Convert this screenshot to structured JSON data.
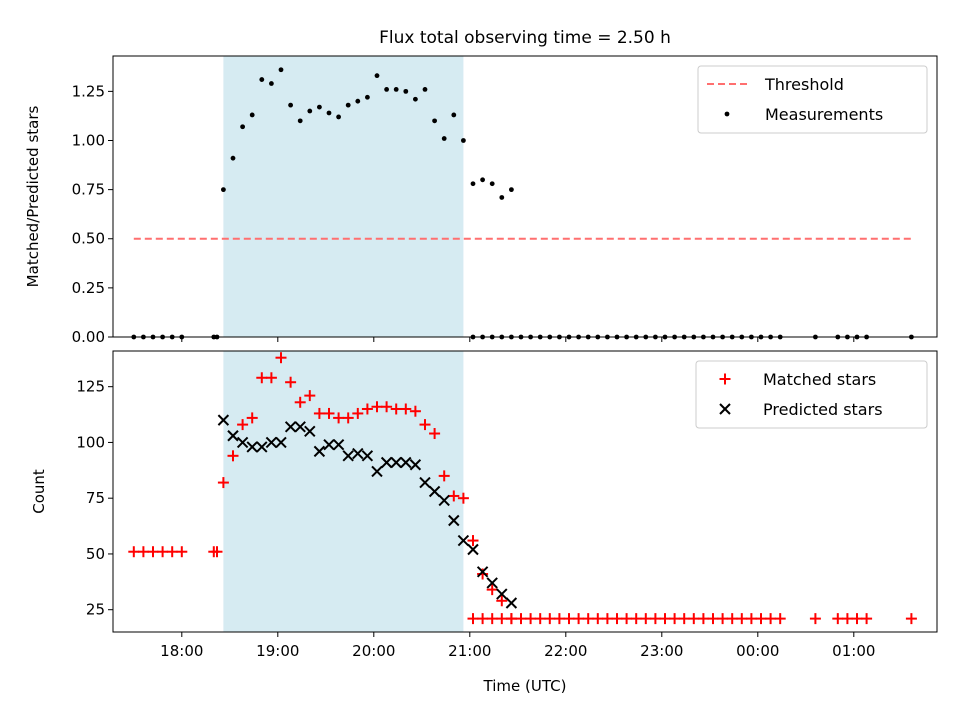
{
  "title": "Flux total observing time = 2.50 h",
  "colors": {
    "shade": "#add8e6",
    "threshold": "#ff6f6f",
    "matched": "#ff0000",
    "predicted": "#000000",
    "measurement": "#000000"
  },
  "chart_data": [
    {
      "type": "scatter",
      "ylabel": "Matched/Predicted stars",
      "xlabel": "",
      "ylim": [
        0,
        1.43
      ],
      "xlim": [
        "17:17",
        "01:52"
      ],
      "yticks": [
        "0.00",
        "0.25",
        "0.50",
        "0.75",
        "1.00",
        "1.25"
      ],
      "grid": false,
      "legend_position": "top-right",
      "observing_window": [
        "18:26",
        "20:56"
      ],
      "threshold": {
        "name": "Threshold",
        "value": 0.5,
        "x_range": [
          "17:30",
          "01:36"
        ]
      },
      "series": [
        {
          "name": "Measurements",
          "marker": "dot",
          "points": [
            [
              "17:30",
              0
            ],
            [
              "17:36",
              0
            ],
            [
              "17:42",
              0
            ],
            [
              "17:48",
              0
            ],
            [
              "17:54",
              0
            ],
            [
              "18:00",
              0
            ],
            [
              "18:20",
              0
            ],
            [
              "18:22",
              0
            ],
            [
              "18:26",
              0.75
            ],
            [
              "18:32",
              0.91
            ],
            [
              "18:38",
              1.07
            ],
            [
              "18:44",
              1.13
            ],
            [
              "18:50",
              1.31
            ],
            [
              "18:56",
              1.29
            ],
            [
              "19:02",
              1.36
            ],
            [
              "19:08",
              1.18
            ],
            [
              "19:14",
              1.1
            ],
            [
              "19:20",
              1.15
            ],
            [
              "19:26",
              1.17
            ],
            [
              "19:32",
              1.14
            ],
            [
              "19:38",
              1.12
            ],
            [
              "19:44",
              1.18
            ],
            [
              "19:50",
              1.2
            ],
            [
              "19:56",
              1.22
            ],
            [
              "20:02",
              1.33
            ],
            [
              "20:08",
              1.26
            ],
            [
              "20:14",
              1.26
            ],
            [
              "20:20",
              1.25
            ],
            [
              "20:26",
              1.21
            ],
            [
              "20:32",
              1.26
            ],
            [
              "20:38",
              1.1
            ],
            [
              "20:44",
              1.01
            ],
            [
              "20:50",
              1.13
            ],
            [
              "20:56",
              1.0
            ],
            [
              "21:02",
              0.78
            ],
            [
              "21:08",
              0.8
            ],
            [
              "21:14",
              0.78
            ],
            [
              "21:20",
              0.71
            ],
            [
              "21:26",
              0.75
            ],
            [
              "21:02",
              0
            ],
            [
              "21:08",
              0
            ],
            [
              "21:14",
              0
            ],
            [
              "21:20",
              0
            ],
            [
              "21:26",
              0
            ],
            [
              "21:32",
              0
            ],
            [
              "21:38",
              0
            ],
            [
              "21:44",
              0
            ],
            [
              "21:50",
              0
            ],
            [
              "21:56",
              0
            ],
            [
              "22:02",
              0
            ],
            [
              "22:08",
              0
            ],
            [
              "22:14",
              0
            ],
            [
              "22:20",
              0
            ],
            [
              "22:26",
              0
            ],
            [
              "22:32",
              0
            ],
            [
              "22:38",
              0
            ],
            [
              "22:44",
              0
            ],
            [
              "22:50",
              0
            ],
            [
              "22:56",
              0
            ],
            [
              "23:02",
              0
            ],
            [
              "23:08",
              0
            ],
            [
              "23:14",
              0
            ],
            [
              "23:20",
              0
            ],
            [
              "23:26",
              0
            ],
            [
              "23:32",
              0
            ],
            [
              "23:38",
              0
            ],
            [
              "23:44",
              0
            ],
            [
              "23:50",
              0
            ],
            [
              "23:56",
              0
            ],
            [
              "00:02",
              0
            ],
            [
              "00:08",
              0
            ],
            [
              "00:14",
              0
            ],
            [
              "00:36",
              0
            ],
            [
              "00:50",
              0
            ],
            [
              "00:56",
              0
            ],
            [
              "01:02",
              0
            ],
            [
              "01:08",
              0
            ],
            [
              "01:36",
              0
            ]
          ]
        }
      ]
    },
    {
      "type": "scatter",
      "ylabel": "Count",
      "xlabel": "Time (UTC)",
      "ylim": [
        15,
        141
      ],
      "xlim": [
        "17:17",
        "01:52"
      ],
      "yticks": [
        "25",
        "50",
        "75",
        "100",
        "125"
      ],
      "xticks": [
        "18:00",
        "19:00",
        "20:00",
        "21:00",
        "22:00",
        "23:00",
        "00:00",
        "01:00"
      ],
      "grid": false,
      "legend_position": "top-right",
      "observing_window": [
        "18:26",
        "20:56"
      ],
      "series": [
        {
          "name": "Matched stars",
          "marker": "plus",
          "points": [
            [
              "17:30",
              51
            ],
            [
              "17:36",
              51
            ],
            [
              "17:42",
              51
            ],
            [
              "17:48",
              51
            ],
            [
              "17:54",
              51
            ],
            [
              "18:00",
              51
            ],
            [
              "18:20",
              51
            ],
            [
              "18:22",
              51
            ],
            [
              "18:26",
              82
            ],
            [
              "18:32",
              94
            ],
            [
              "18:38",
              108
            ],
            [
              "18:44",
              111
            ],
            [
              "18:50",
              129
            ],
            [
              "18:56",
              129
            ],
            [
              "19:02",
              138
            ],
            [
              "19:08",
              127
            ],
            [
              "19:14",
              118
            ],
            [
              "19:20",
              121
            ],
            [
              "19:26",
              113
            ],
            [
              "19:32",
              113
            ],
            [
              "19:38",
              111
            ],
            [
              "19:44",
              111
            ],
            [
              "19:50",
              113
            ],
            [
              "19:56",
              115
            ],
            [
              "20:02",
              116
            ],
            [
              "20:08",
              116
            ],
            [
              "20:14",
              115
            ],
            [
              "20:20",
              115
            ],
            [
              "20:26",
              114
            ],
            [
              "20:32",
              108
            ],
            [
              "20:38",
              104
            ],
            [
              "20:44",
              85
            ],
            [
              "20:50",
              76
            ],
            [
              "20:56",
              75
            ],
            [
              "21:02",
              56
            ],
            [
              "21:08",
              41
            ],
            [
              "21:14",
              34
            ],
            [
              "21:20",
              29
            ],
            [
              "21:26",
              21
            ],
            [
              "21:02",
              21
            ],
            [
              "21:08",
              21
            ],
            [
              "21:14",
              21
            ],
            [
              "21:20",
              21
            ],
            [
              "21:26",
              21
            ],
            [
              "21:32",
              21
            ],
            [
              "21:38",
              21
            ],
            [
              "21:44",
              21
            ],
            [
              "21:50",
              21
            ],
            [
              "21:56",
              21
            ],
            [
              "22:02",
              21
            ],
            [
              "22:08",
              21
            ],
            [
              "22:14",
              21
            ],
            [
              "22:20",
              21
            ],
            [
              "22:26",
              21
            ],
            [
              "22:32",
              21
            ],
            [
              "22:38",
              21
            ],
            [
              "22:44",
              21
            ],
            [
              "22:50",
              21
            ],
            [
              "22:56",
              21
            ],
            [
              "23:02",
              21
            ],
            [
              "23:08",
              21
            ],
            [
              "23:14",
              21
            ],
            [
              "23:20",
              21
            ],
            [
              "23:26",
              21
            ],
            [
              "23:32",
              21
            ],
            [
              "23:38",
              21
            ],
            [
              "23:44",
              21
            ],
            [
              "23:50",
              21
            ],
            [
              "23:56",
              21
            ],
            [
              "00:02",
              21
            ],
            [
              "00:08",
              21
            ],
            [
              "00:14",
              21
            ],
            [
              "00:36",
              21
            ],
            [
              "00:50",
              21
            ],
            [
              "00:56",
              21
            ],
            [
              "01:02",
              21
            ],
            [
              "01:08",
              21
            ],
            [
              "01:36",
              21
            ]
          ]
        },
        {
          "name": "Predicted stars",
          "marker": "x",
          "points": [
            [
              "18:26",
              110
            ],
            [
              "18:32",
              103
            ],
            [
              "18:38",
              100
            ],
            [
              "18:44",
              98
            ],
            [
              "18:50",
              98
            ],
            [
              "18:56",
              100
            ],
            [
              "19:02",
              100
            ],
            [
              "19:08",
              107
            ],
            [
              "19:14",
              107
            ],
            [
              "19:20",
              105
            ],
            [
              "19:26",
              96
            ],
            [
              "19:32",
              99
            ],
            [
              "19:38",
              99
            ],
            [
              "19:44",
              94
            ],
            [
              "19:50",
              95
            ],
            [
              "19:56",
              94
            ],
            [
              "20:02",
              87
            ],
            [
              "20:08",
              91
            ],
            [
              "20:14",
              91
            ],
            [
              "20:20",
              91
            ],
            [
              "20:26",
              90
            ],
            [
              "20:32",
              82
            ],
            [
              "20:38",
              78
            ],
            [
              "20:44",
              74
            ],
            [
              "20:50",
              65
            ],
            [
              "20:56",
              56
            ],
            [
              "21:02",
              52
            ],
            [
              "21:08",
              42
            ],
            [
              "21:14",
              37
            ],
            [
              "21:20",
              32
            ],
            [
              "21:26",
              28
            ]
          ]
        }
      ]
    }
  ]
}
